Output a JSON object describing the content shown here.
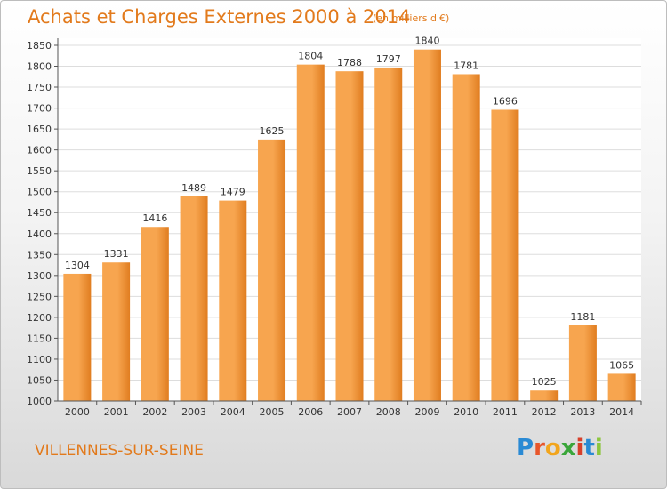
{
  "header": {
    "title": "Achats et Charges Externes 2000 à 2014",
    "unit": "(en milliers d'€)"
  },
  "footer": {
    "commune": "VILLENNES-SUR-SEINE",
    "logo_text": "Proxiti"
  },
  "colors": {
    "bar_light": "#f7a54f",
    "bar_dark": "#e07d20",
    "accent": "#e27a1c",
    "grid": "#dddddd"
  },
  "chart_data": {
    "type": "bar",
    "title": "Achats et Charges Externes 2000 à 2014",
    "subtitle": "(en milliers d'€)",
    "categories": [
      "2000",
      "2001",
      "2002",
      "2003",
      "2004",
      "2005",
      "2006",
      "2007",
      "2008",
      "2009",
      "2010",
      "2011",
      "2012",
      "2013",
      "2014"
    ],
    "values": [
      1304,
      1331,
      1416,
      1489,
      1479,
      1625,
      1804,
      1788,
      1797,
      1840,
      1781,
      1696,
      1025,
      1181,
      1065
    ],
    "ylim": [
      1000,
      1850
    ],
    "yticks": [
      1000,
      1050,
      1100,
      1150,
      1200,
      1250,
      1300,
      1350,
      1400,
      1450,
      1500,
      1550,
      1600,
      1650,
      1700,
      1750,
      1800,
      1850
    ],
    "grid": true,
    "data_labels": true
  }
}
